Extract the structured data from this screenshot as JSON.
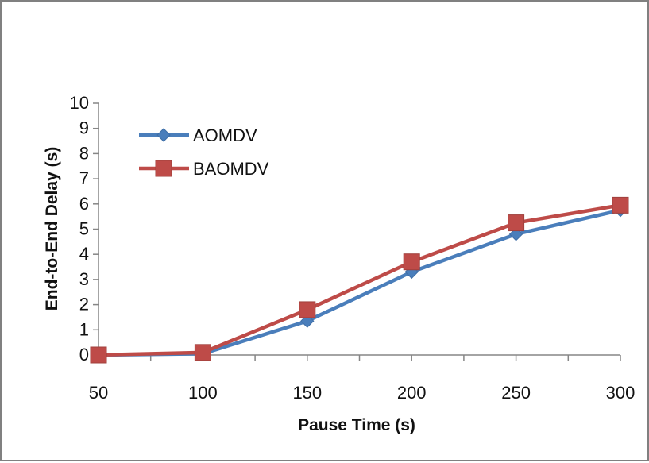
{
  "chart_data": {
    "type": "line",
    "xlabel": "Pause Time (s)",
    "ylabel": "End-to-End Delay (s)",
    "x": [
      50,
      100,
      150,
      200,
      250,
      300
    ],
    "xlim": [
      50,
      300
    ],
    "ylim": [
      0,
      10
    ],
    "x_ticks": [
      "50",
      "100",
      "150",
      "200",
      "250",
      "300"
    ],
    "y_ticks": [
      "0",
      "1",
      "2",
      "3",
      "4",
      "5",
      "6",
      "7",
      "8",
      "9",
      "10"
    ],
    "grid": false,
    "legend_position": "top-left",
    "series": [
      {
        "name": "AOMDV",
        "color": "#4a7ebb",
        "marker": "diamond",
        "values": [
          0.0,
          0.05,
          1.35,
          3.3,
          4.8,
          5.75
        ]
      },
      {
        "name": "BAOMDV",
        "color": "#be4b48",
        "marker": "square",
        "values": [
          0.0,
          0.1,
          1.8,
          3.7,
          5.25,
          5.95
        ]
      }
    ]
  }
}
